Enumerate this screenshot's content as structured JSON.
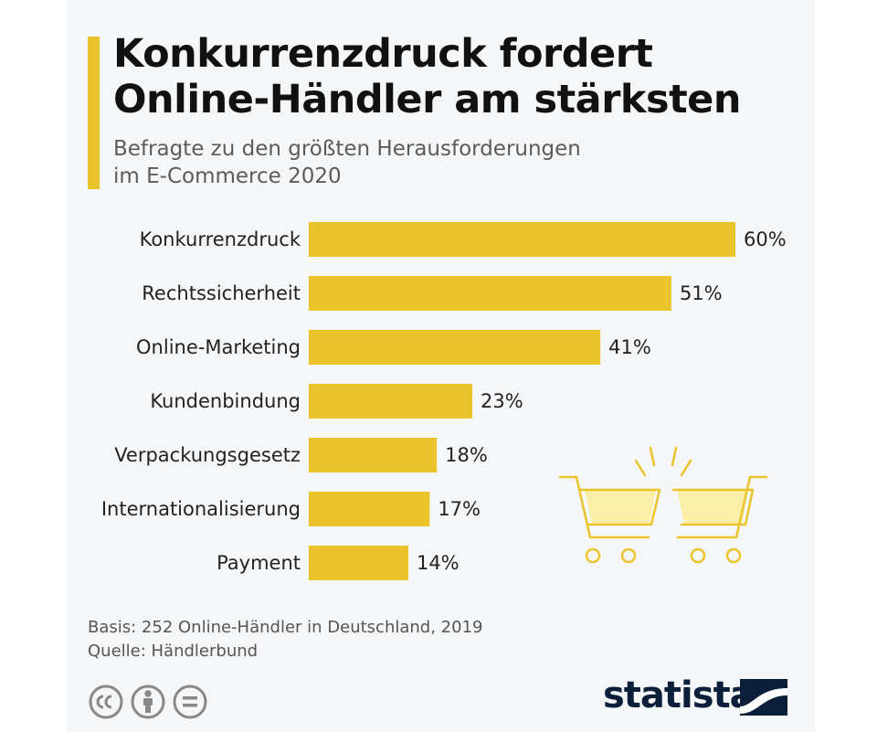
{
  "header": {
    "title_line1": "Konkurrenzdruck fordert",
    "title_line2": "Online-Händler am stärksten",
    "subtitle_line1": "Befragte zu den größten Herausforderungen",
    "subtitle_line2": "im E-Commerce 2020"
  },
  "chart_data": {
    "type": "bar",
    "orientation": "horizontal",
    "categories": [
      "Konkurrenzdruck",
      "Rechtssicherheit",
      "Online-Marketing",
      "Kundenbindung",
      "Verpackungsgesetz",
      "Internationalisierung",
      "Payment"
    ],
    "values": [
      60,
      51,
      41,
      23,
      18,
      17,
      14
    ],
    "value_labels": [
      "60%",
      "51%",
      "41%",
      "23%",
      "18%",
      "17%",
      "14%"
    ],
    "unit": "%",
    "xlim": [
      0,
      60
    ],
    "grid": false,
    "legend": "none"
  },
  "footer": {
    "basis": "Basis: 252 Online-Händler in Deutschland, 2019",
    "source": "Quelle: Händlerbund"
  },
  "brand": {
    "logo_text": "statista"
  },
  "colors": {
    "bar": "#ebc42c",
    "accent": "#ebc42c",
    "cart": "#ebc42c",
    "cart_fill": "#fbeea8",
    "logo": "#0b1f3a",
    "icon_gray": "#888888"
  },
  "icons": [
    "shopping-cart-icon",
    "creative-commons-icon",
    "attribution-icon",
    "no-derivatives-icon",
    "statista-logo-icon"
  ]
}
